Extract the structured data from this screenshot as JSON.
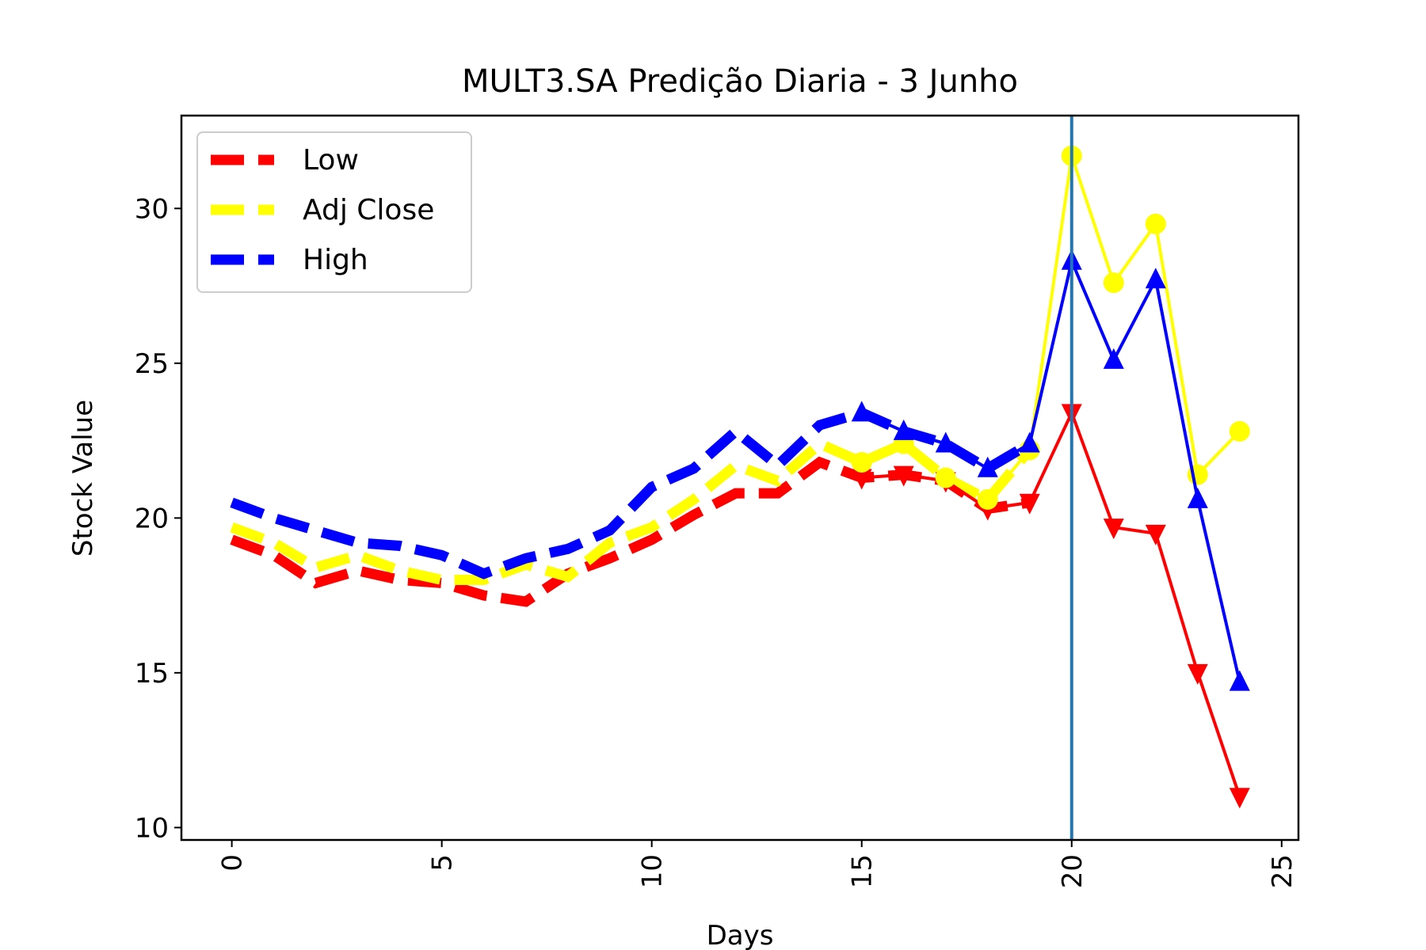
{
  "chart_data": {
    "type": "line",
    "title": "MULT3.SA Predição Diaria - 3 Junho",
    "xlabel": "Days",
    "ylabel": "Stock Value",
    "xlim": [
      -1.2,
      25.4
    ],
    "ylim": [
      9.6,
      33.0
    ],
    "xticks": [
      0,
      5,
      10,
      15,
      20,
      25
    ],
    "yticks": [
      10,
      15,
      20,
      25,
      30
    ],
    "grid": false,
    "legend_position": "top-left",
    "vertical_line": {
      "x": 20,
      "color": "#1f77b4"
    },
    "series": [
      {
        "name": "Low",
        "color": "#ff0000",
        "historical": {
          "x": [
            0,
            1,
            2,
            3,
            4,
            5,
            6,
            7,
            8,
            9,
            10,
            11,
            12,
            13,
            14,
            15,
            16,
            17,
            18,
            19
          ],
          "y": [
            19.3,
            18.8,
            17.9,
            18.3,
            18.0,
            17.9,
            17.5,
            17.3,
            18.2,
            18.7,
            19.3,
            20.1,
            20.8,
            20.8,
            21.8,
            21.3,
            21.4,
            21.2,
            20.3,
            20.5
          ]
        },
        "predicted": {
          "marker": "triangle-down",
          "x": [
            15,
            16,
            17,
            18,
            19,
            20,
            21,
            22,
            23,
            24
          ],
          "y": [
            21.3,
            21.4,
            21.2,
            20.3,
            20.5,
            23.4,
            19.7,
            19.5,
            15.0,
            11.0
          ]
        }
      },
      {
        "name": "Adj Close",
        "color": "#ffff00",
        "historical": {
          "x": [
            0,
            1,
            2,
            3,
            4,
            5,
            6,
            7,
            8,
            9,
            10,
            11,
            12,
            13,
            14,
            15,
            16,
            17,
            18,
            19
          ],
          "y": [
            19.7,
            19.2,
            18.4,
            18.8,
            18.3,
            18.0,
            18.0,
            18.5,
            18.1,
            19.2,
            19.7,
            20.6,
            21.7,
            21.2,
            22.4,
            21.8,
            22.4,
            21.3,
            20.6,
            22.2
          ]
        },
        "predicted": {
          "marker": "circle",
          "x": [
            15,
            16,
            17,
            18,
            19,
            20,
            21,
            22,
            23,
            24
          ],
          "y": [
            21.8,
            22.4,
            21.3,
            20.6,
            22.2,
            31.7,
            27.6,
            29.5,
            21.4,
            22.8
          ]
        }
      },
      {
        "name": "High",
        "color": "#0000ff",
        "historical": {
          "x": [
            0,
            1,
            2,
            3,
            4,
            5,
            6,
            7,
            8,
            9,
            10,
            11,
            12,
            13,
            14,
            15,
            16,
            17,
            18,
            19
          ],
          "y": [
            20.5,
            20.0,
            19.6,
            19.2,
            19.1,
            18.8,
            18.2,
            18.7,
            19.0,
            19.6,
            21.0,
            21.6,
            22.8,
            21.7,
            23.0,
            23.4,
            22.8,
            22.4,
            21.6,
            22.4
          ]
        },
        "predicted": {
          "marker": "triangle-up",
          "x": [
            15,
            16,
            17,
            18,
            19,
            20,
            21,
            22,
            23,
            24
          ],
          "y": [
            23.4,
            22.8,
            22.4,
            21.6,
            22.4,
            28.3,
            25.1,
            27.7,
            20.6,
            14.7
          ]
        }
      }
    ]
  }
}
